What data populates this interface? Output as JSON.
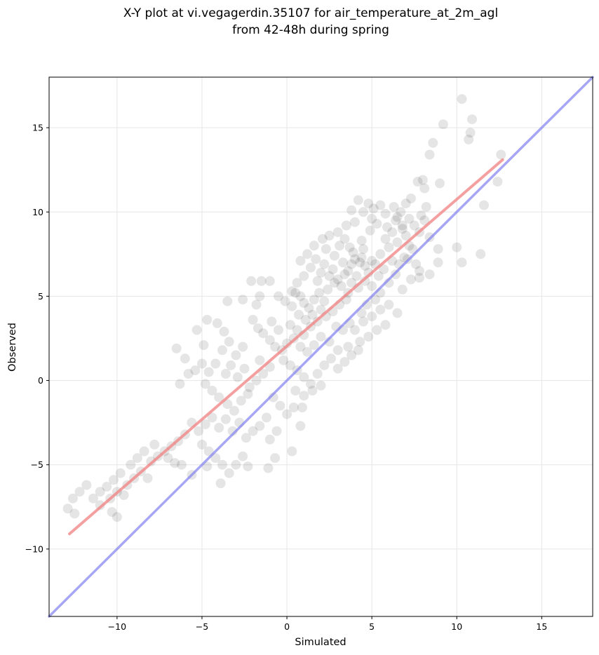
{
  "chart_data": {
    "type": "scatter",
    "title_line1": "X-Y plot at vi.vegagerdin.35107 for air_temperature_at_2m_agl",
    "title_line2": "from 42-48h during spring",
    "xlabel": "Simulated",
    "ylabel": "Observed",
    "xlim": [
      -14,
      18
    ],
    "ylim": [
      -14,
      18
    ],
    "xticks": [
      -10,
      -5,
      0,
      5,
      10,
      15
    ],
    "yticks": [
      -10,
      -5,
      0,
      5,
      10,
      15
    ],
    "xtick_labels": [
      "−10",
      "−5",
      "0",
      "5",
      "10",
      "15"
    ],
    "ytick_labels": [
      "−10",
      "−5",
      "0",
      "5",
      "10",
      "15"
    ],
    "grid": true,
    "point_color": "#000000",
    "point_alpha": 0.1,
    "points": [
      [
        10.3,
        16.7
      ],
      [
        10.9,
        15.5
      ],
      [
        10.8,
        14.7
      ],
      [
        10.7,
        14.3
      ],
      [
        9.2,
        15.2
      ],
      [
        8.6,
        14.1
      ],
      [
        8.4,
        13.4
      ],
      [
        12.6,
        13.4
      ],
      [
        12.4,
        11.8
      ],
      [
        11.6,
        10.4
      ],
      [
        11.4,
        7.5
      ],
      [
        10.0,
        7.9
      ],
      [
        10.3,
        7.0
      ],
      [
        8.9,
        7.8
      ],
      [
        8.9,
        7.0
      ],
      [
        8.4,
        6.3
      ],
      [
        7.8,
        6.1
      ],
      [
        9.0,
        11.7
      ],
      [
        8.0,
        11.9
      ],
      [
        7.7,
        11.8
      ],
      [
        8.1,
        11.4
      ],
      [
        7.3,
        10.8
      ],
      [
        7.0,
        10.5
      ],
      [
        6.3,
        10.3
      ],
      [
        4.2,
        10.7
      ],
      [
        4.8,
        10.5
      ],
      [
        5.5,
        10.4
      ],
      [
        5.1,
        10.2
      ],
      [
        4.5,
        10.0
      ],
      [
        3.8,
        10.1
      ],
      [
        5.8,
        9.9
      ],
      [
        6.5,
        9.7
      ],
      [
        7.2,
        9.6
      ],
      [
        4.0,
        9.4
      ],
      [
        3.5,
        9.2
      ],
      [
        3.0,
        8.8
      ],
      [
        2.5,
        8.6
      ],
      [
        2.1,
        8.4
      ],
      [
        1.6,
        8.0
      ],
      [
        1.2,
        7.5
      ],
      [
        0.8,
        7.1
      ],
      [
        4.0,
        7.2
      ],
      [
        4.3,
        7.0
      ],
      [
        4.6,
        6.8
      ],
      [
        3.8,
        6.9
      ],
      [
        4.4,
        7.3
      ],
      [
        5.0,
        7.1
      ],
      [
        3.6,
        6.5
      ],
      [
        4.8,
        6.4
      ],
      [
        5.2,
        6.9
      ],
      [
        4.1,
        6.2
      ],
      [
        3.9,
        7.6
      ],
      [
        4.5,
        7.8
      ],
      [
        5.5,
        7.5
      ],
      [
        6.0,
        7.9
      ],
      [
        6.5,
        8.2
      ],
      [
        7.0,
        8.6
      ],
      [
        6.8,
        9.0
      ],
      [
        6.2,
        8.8
      ],
      [
        5.8,
        8.4
      ],
      [
        7.5,
        9.2
      ],
      [
        7.8,
        8.8
      ],
      [
        8.1,
        9.5
      ],
      [
        8.4,
        8.5
      ],
      [
        7.4,
        7.8
      ],
      [
        6.9,
        7.3
      ],
      [
        3.0,
        6.0
      ],
      [
        2.8,
        5.8
      ],
      [
        3.2,
        5.6
      ],
      [
        2.5,
        6.2
      ],
      [
        3.4,
        6.3
      ],
      [
        2.7,
        6.6
      ],
      [
        3.3,
        7.0
      ],
      [
        2.2,
        6.9
      ],
      [
        2.0,
        6.4
      ],
      [
        1.8,
        5.9
      ],
      [
        2.4,
        5.4
      ],
      [
        3.6,
        5.2
      ],
      [
        3.8,
        5.8
      ],
      [
        4.2,
        5.5
      ],
      [
        4.6,
        5.9
      ],
      [
        5.0,
        5.6
      ],
      [
        5.4,
        6.2
      ],
      [
        5.7,
        6.6
      ],
      [
        6.2,
        7.1
      ],
      [
        6.6,
        6.9
      ],
      [
        7.1,
        7.2
      ],
      [
        7.6,
        6.9
      ],
      [
        6.4,
        6.3
      ],
      [
        6.0,
        5.8
      ],
      [
        5.5,
        5.2
      ],
      [
        5.2,
        4.8
      ],
      [
        4.7,
        4.5
      ],
      [
        4.4,
        4.0
      ],
      [
        6.8,
        5.4
      ],
      [
        7.3,
        6.0
      ],
      [
        7.8,
        6.5
      ],
      [
        0.5,
        5.2
      ],
      [
        0.8,
        5.0
      ],
      [
        1.0,
        4.6
      ],
      [
        1.3,
        4.3
      ],
      [
        1.6,
        4.8
      ],
      [
        1.9,
        5.2
      ],
      [
        2.2,
        4.7
      ],
      [
        2.0,
        4.2
      ],
      [
        1.5,
        3.9
      ],
      [
        1.1,
        3.6
      ],
      [
        0.7,
        3.9
      ],
      [
        0.3,
        4.4
      ],
      [
        -0.1,
        4.7
      ],
      [
        0.2,
        3.3
      ],
      [
        0.6,
        3.0
      ],
      [
        1.0,
        2.7
      ],
      [
        1.4,
        3.2
      ],
      [
        1.8,
        3.5
      ],
      [
        2.3,
        3.8
      ],
      [
        2.7,
        4.1
      ],
      [
        3.1,
        4.5
      ],
      [
        3.5,
        4.8
      ],
      [
        2.9,
        3.2
      ],
      [
        3.3,
        3.0
      ],
      [
        3.7,
        3.4
      ],
      [
        4.0,
        3.0
      ],
      [
        4.5,
        3.5
      ],
      [
        5.0,
        3.8
      ],
      [
        5.5,
        4.2
      ],
      [
        6.0,
        4.5
      ],
      [
        6.5,
        4.0
      ],
      [
        5.8,
        3.3
      ],
      [
        5.3,
        3.0
      ],
      [
        4.8,
        2.6
      ],
      [
        4.3,
        2.3
      ],
      [
        3.6,
        2.0
      ],
      [
        3.0,
        1.8
      ],
      [
        2.5,
        2.3
      ],
      [
        2.0,
        2.6
      ],
      [
        0.0,
        2.2
      ],
      [
        0.4,
        2.5
      ],
      [
        0.8,
        2.0
      ],
      [
        1.2,
        1.7
      ],
      [
        1.6,
        2.1
      ],
      [
        -0.3,
        1.8
      ],
      [
        -0.7,
        2.0
      ],
      [
        -1.0,
        2.4
      ],
      [
        -1.4,
        2.8
      ],
      [
        -1.7,
        3.1
      ],
      [
        -2.0,
        3.6
      ],
      [
        -0.5,
        3.0
      ],
      [
        -0.9,
        3.5
      ],
      [
        -0.2,
        1.2
      ],
      [
        0.2,
        0.9
      ],
      [
        0.6,
        0.6
      ],
      [
        1.0,
        0.2
      ],
      [
        1.4,
        -0.2
      ],
      [
        1.8,
        0.4
      ],
      [
        2.2,
        0.9
      ],
      [
        2.6,
        1.3
      ],
      [
        3.0,
        0.7
      ],
      [
        3.4,
        1.1
      ],
      [
        3.8,
        1.5
      ],
      [
        4.2,
        1.8
      ],
      [
        2.0,
        -0.3
      ],
      [
        1.5,
        -0.6
      ],
      [
        1.0,
        -0.9
      ],
      [
        0.5,
        -0.6
      ],
      [
        -1.0,
        0.8
      ],
      [
        -1.4,
        0.4
      ],
      [
        -1.8,
        0.0
      ],
      [
        -2.2,
        -0.4
      ],
      [
        -1.6,
        1.2
      ],
      [
        -2.5,
        0.7
      ],
      [
        -2.9,
        0.2
      ],
      [
        -3.3,
        0.9
      ],
      [
        -3.6,
        0.4
      ],
      [
        -3.0,
        1.5
      ],
      [
        -2.6,
        2.0
      ],
      [
        -3.4,
        2.3
      ],
      [
        -3.8,
        1.8
      ],
      [
        -4.2,
        1.0
      ],
      [
        -4.6,
        0.5
      ],
      [
        -5.0,
        1.0
      ],
      [
        -5.4,
        0.6
      ],
      [
        -4.8,
        -0.2
      ],
      [
        -4.4,
        -0.6
      ],
      [
        -4.0,
        -1.0
      ],
      [
        -3.5,
        -1.4
      ],
      [
        -3.1,
        -1.8
      ],
      [
        -2.7,
        -1.2
      ],
      [
        -2.3,
        -0.8
      ],
      [
        -0.8,
        -1.0
      ],
      [
        -0.4,
        -1.5
      ],
      [
        0.0,
        -2.0
      ],
      [
        0.4,
        -1.6
      ],
      [
        -1.2,
        -2.2
      ],
      [
        -1.6,
        -2.7
      ],
      [
        -0.6,
        -3.0
      ],
      [
        -1.0,
        -3.5
      ],
      [
        -2.0,
        -3.0
      ],
      [
        -2.4,
        -3.4
      ],
      [
        -2.8,
        -2.5
      ],
      [
        -3.2,
        -3.0
      ],
      [
        -3.6,
        -2.3
      ],
      [
        -4.0,
        -2.8
      ],
      [
        -4.4,
        -2.2
      ],
      [
        -4.8,
        -2.6
      ],
      [
        -5.2,
        -3.0
      ],
      [
        -5.6,
        -2.5
      ],
      [
        -6.0,
        -3.2
      ],
      [
        -6.4,
        -3.6
      ],
      [
        -5.0,
        -3.8
      ],
      [
        -4.6,
        -4.2
      ],
      [
        -4.2,
        -4.6
      ],
      [
        -3.8,
        -5.0
      ],
      [
        -3.4,
        -5.5
      ],
      [
        -3.0,
        -5.0
      ],
      [
        -2.6,
        -4.5
      ],
      [
        -6.8,
        -3.9
      ],
      [
        -7.2,
        -4.2
      ],
      [
        -7.6,
        -4.5
      ],
      [
        -8.0,
        -4.8
      ],
      [
        -7.0,
        -4.6
      ],
      [
        -6.6,
        -4.9
      ],
      [
        -6.2,
        -5.0
      ],
      [
        -7.8,
        -3.8
      ],
      [
        -8.4,
        -4.2
      ],
      [
        -8.8,
        -4.6
      ],
      [
        -9.2,
        -5.0
      ],
      [
        -8.6,
        -5.4
      ],
      [
        -8.2,
        -5.8
      ],
      [
        -9.0,
        -5.8
      ],
      [
        -9.4,
        -6.2
      ],
      [
        -9.8,
        -5.5
      ],
      [
        -10.2,
        -5.9
      ],
      [
        -10.6,
        -6.3
      ],
      [
        -10.0,
        -6.6
      ],
      [
        -10.4,
        -7.0
      ],
      [
        -11.0,
        -6.6
      ],
      [
        -11.4,
        -7.0
      ],
      [
        -11.0,
        -7.4
      ],
      [
        -11.8,
        -6.2
      ],
      [
        -12.2,
        -6.6
      ],
      [
        -12.6,
        -7.0
      ],
      [
        -12.9,
        -7.6
      ],
      [
        -12.5,
        -7.9
      ],
      [
        -10.0,
        -8.1
      ],
      [
        -10.3,
        -7.8
      ],
      [
        -9.6,
        -6.8
      ],
      [
        -6.5,
        1.9
      ],
      [
        -6.0,
        1.3
      ],
      [
        -5.8,
        0.4
      ],
      [
        -6.3,
        -0.2
      ],
      [
        -5.3,
        3.0
      ],
      [
        -4.7,
        3.6
      ],
      [
        -4.1,
        3.4
      ],
      [
        -3.7,
        2.9
      ],
      [
        -4.9,
        2.1
      ],
      [
        -2.6,
        4.8
      ],
      [
        -2.1,
        5.9
      ],
      [
        -1.5,
        5.9
      ],
      [
        -1.0,
        5.9
      ],
      [
        -1.6,
        5.0
      ],
      [
        -3.5,
        4.7
      ],
      [
        -1.8,
        4.5
      ],
      [
        -0.5,
        5.0
      ],
      [
        0.3,
        5.3
      ],
      [
        -5.6,
        -5.6
      ],
      [
        -4.7,
        -5.1
      ],
      [
        -3.9,
        -6.1
      ],
      [
        -2.3,
        -5.1
      ],
      [
        -1.1,
        -5.2
      ],
      [
        -0.7,
        -4.6
      ],
      [
        0.3,
        -4.2
      ],
      [
        0.8,
        -2.7
      ],
      [
        0.9,
        -1.6
      ],
      [
        2.8,
        7.4
      ],
      [
        3.1,
        8.0
      ],
      [
        3.4,
        8.4
      ],
      [
        2.3,
        7.8
      ],
      [
        1.7,
        7.2
      ],
      [
        1.4,
        6.7
      ],
      [
        1.0,
        6.2
      ],
      [
        0.6,
        5.8
      ],
      [
        4.9,
        8.9
      ],
      [
        5.3,
        9.3
      ],
      [
        5.9,
        9.1
      ],
      [
        6.4,
        9.5
      ],
      [
        6.8,
        9.2
      ],
      [
        7.2,
        8.0
      ],
      [
        7.9,
        9.8
      ],
      [
        8.2,
        10.3
      ],
      [
        6.7,
        10.0
      ],
      [
        5.0,
        9.6
      ],
      [
        4.4,
        8.3
      ],
      [
        3.7,
        7.9
      ]
    ],
    "fit_line": {
      "color": "#f08080",
      "x": [
        -12.8,
        12.7
      ],
      "y": [
        -9.1,
        13.1
      ]
    },
    "identity_line": {
      "color": "#8080f0",
      "x": [
        -14,
        18
      ],
      "y": [
        -14,
        18
      ]
    }
  }
}
